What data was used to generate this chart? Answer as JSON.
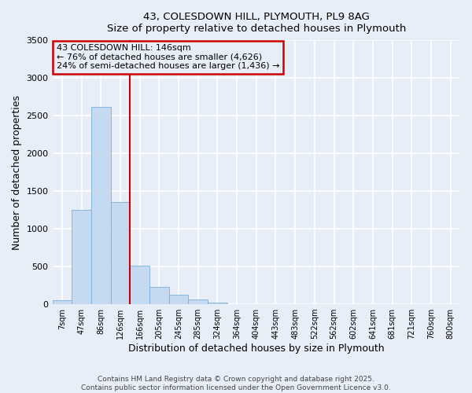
{
  "title_line1": "43, COLESDOWN HILL, PLYMOUTH, PL9 8AG",
  "title_line2": "Size of property relative to detached houses in Plymouth",
  "xlabel": "Distribution of detached houses by size in Plymouth",
  "ylabel": "Number of detached properties",
  "categories": [
    "7sqm",
    "47sqm",
    "86sqm",
    "126sqm",
    "166sqm",
    "205sqm",
    "245sqm",
    "285sqm",
    "324sqm",
    "364sqm",
    "404sqm",
    "443sqm",
    "483sqm",
    "522sqm",
    "562sqm",
    "602sqm",
    "641sqm",
    "681sqm",
    "721sqm",
    "760sqm",
    "800sqm"
  ],
  "values": [
    55,
    1250,
    2620,
    1350,
    510,
    230,
    130,
    60,
    25,
    0,
    0,
    0,
    0,
    0,
    0,
    0,
    0,
    0,
    0,
    0,
    0
  ],
  "bar_color": "#c5d9f0",
  "bar_edge_color": "#7ab0d8",
  "property_line_x": 3.48,
  "annotation_text": "43 COLESDOWN HILL: 146sqm\n← 76% of detached houses are smaller (4,626)\n24% of semi-detached houses are larger (1,436) →",
  "annotation_box_color": "#cc0000",
  "vline_color": "#cc0000",
  "ylim": [
    0,
    3500
  ],
  "yticks": [
    0,
    500,
    1000,
    1500,
    2000,
    2500,
    3000,
    3500
  ],
  "background_color": "#e8eef8",
  "grid_color": "#ffffff",
  "footer_line1": "Contains HM Land Registry data © Crown copyright and database right 2025.",
  "footer_line2": "Contains public sector information licensed under the Open Government Licence v3.0."
}
